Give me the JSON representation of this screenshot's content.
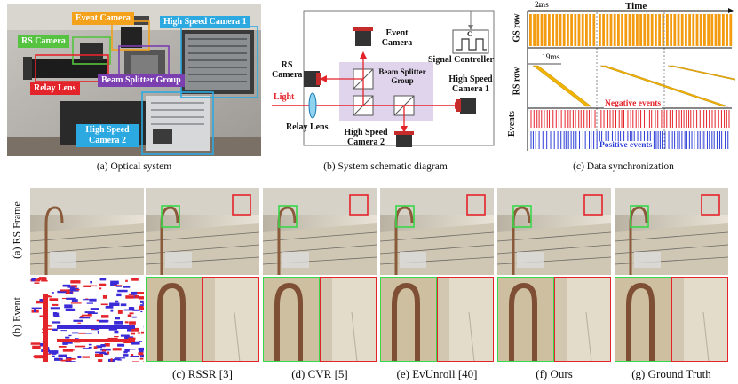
{
  "panel_a": {
    "labels": {
      "event_camera": "Event Camera",
      "rs_camera": "RS Camera",
      "high_speed_camera_1": "High Speed Camera 1",
      "beam_splitter_group": "Beam Splitter Group",
      "relay_lens": "Relay Lens",
      "high_speed_camera_2": "High Speed Camera 2"
    },
    "caption": "(a)  Optical system",
    "colors": {
      "event": "#f4a11c",
      "rs": "#55c340",
      "hs": "#2ca9e1",
      "bs": "#7b3fb0",
      "relay": "#e4242b"
    }
  },
  "panel_b": {
    "labels": {
      "event_camera": "Event Camera",
      "rs_camera": "RS Camera",
      "signal_controller": "Signal Controller",
      "beam_splitter_group": "Beam Splitter Group",
      "high_speed_camera_1": "High Speed Camera 1",
      "light": "Light",
      "relay_lens": "Relay Lens",
      "high_speed_camera_2": "High Speed Camera 2",
      "controller_symbol": "C"
    },
    "caption": "(b)  System schematic diagram"
  },
  "panel_c": {
    "time_label": "Time",
    "gs_ticks_label": "2ms",
    "rs_ticks_label": "19ms",
    "row_labels": {
      "gs": "GS row",
      "rs": "RS row",
      "events": "Events"
    },
    "negative_events": "Negative events",
    "positive_events": "Positive events",
    "caption": "(c)  Data synchronization",
    "colors": {
      "gs": "#f39c12",
      "rs": "#f0b400",
      "negative": "#e4242b",
      "positive": "#2b3dd6"
    }
  },
  "row_labels": {
    "rs_frame": "(a) RS Frame",
    "event": "(b) Event"
  },
  "methods": [
    {
      "caption": "(c) RSSR [3]"
    },
    {
      "caption": "(d) CVR [5]"
    },
    {
      "caption": "(e) EvUnroll [40]"
    },
    {
      "caption": "(f) Ours"
    },
    {
      "caption": "(g) Ground Truth"
    }
  ]
}
